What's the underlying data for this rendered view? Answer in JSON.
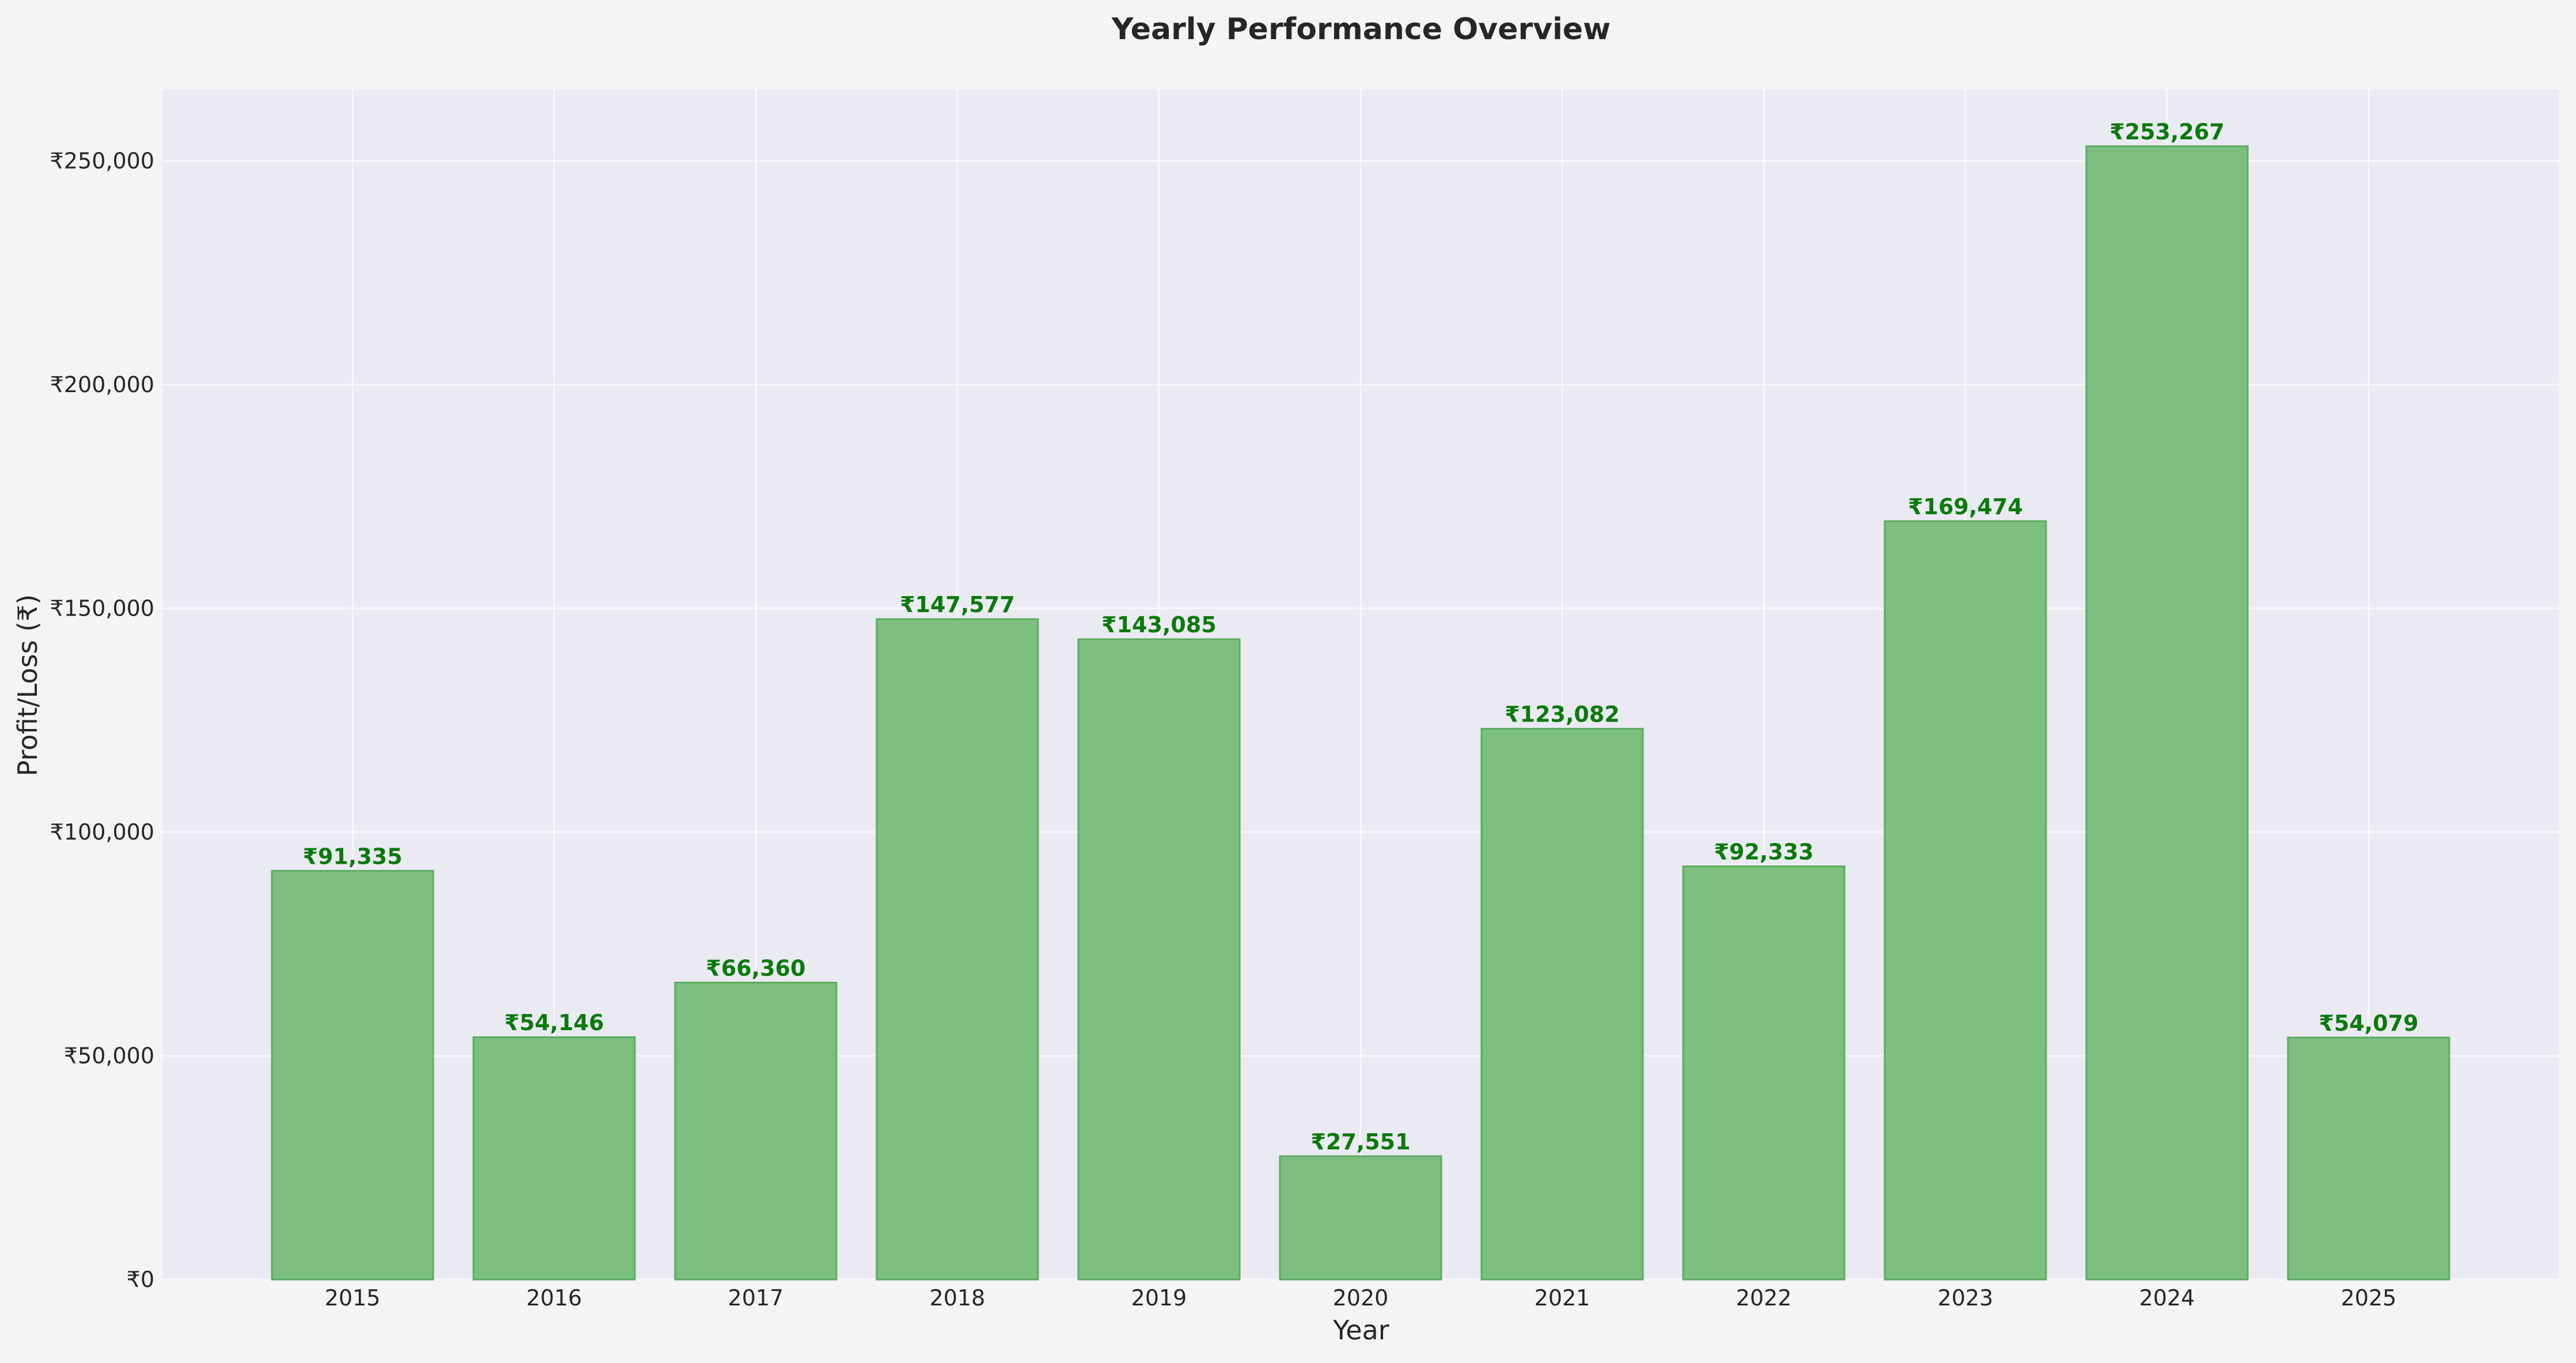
{
  "chart_data": {
    "type": "bar",
    "title": "Yearly Performance Overview",
    "xlabel": "Year",
    "ylabel": "Profit/Loss (₹)",
    "categories": [
      "2015",
      "2016",
      "2017",
      "2018",
      "2019",
      "2020",
      "2021",
      "2022",
      "2023",
      "2024",
      "2025"
    ],
    "values": [
      91335,
      54146,
      66360,
      147577,
      143085,
      27551,
      123082,
      92333,
      169474,
      253267,
      54079
    ],
    "data_labels": [
      "₹91,335",
      "₹54,146",
      "₹66,360",
      "₹147,577",
      "₹143,085",
      "₹27,551",
      "₹123,082",
      "₹92,333",
      "₹169,474",
      "₹253,267",
      "₹54,079"
    ],
    "ylim": [
      0,
      266000
    ],
    "yticks": [
      0,
      50000,
      100000,
      150000,
      200000,
      250000
    ],
    "ytick_labels": [
      "₹0",
      "₹50,000",
      "₹100,000",
      "₹150,000",
      "₹200,000",
      "₹250,000"
    ],
    "grid": true,
    "colors": {
      "page_background": "#f4f4f4",
      "plot_background": "#eaeaf2",
      "grid": "#f7f7fb",
      "bar_fill": "#7dbf80",
      "bar_edge": "#5cab5f",
      "data_label": "#0a7a0a",
      "text": "#262626"
    }
  }
}
